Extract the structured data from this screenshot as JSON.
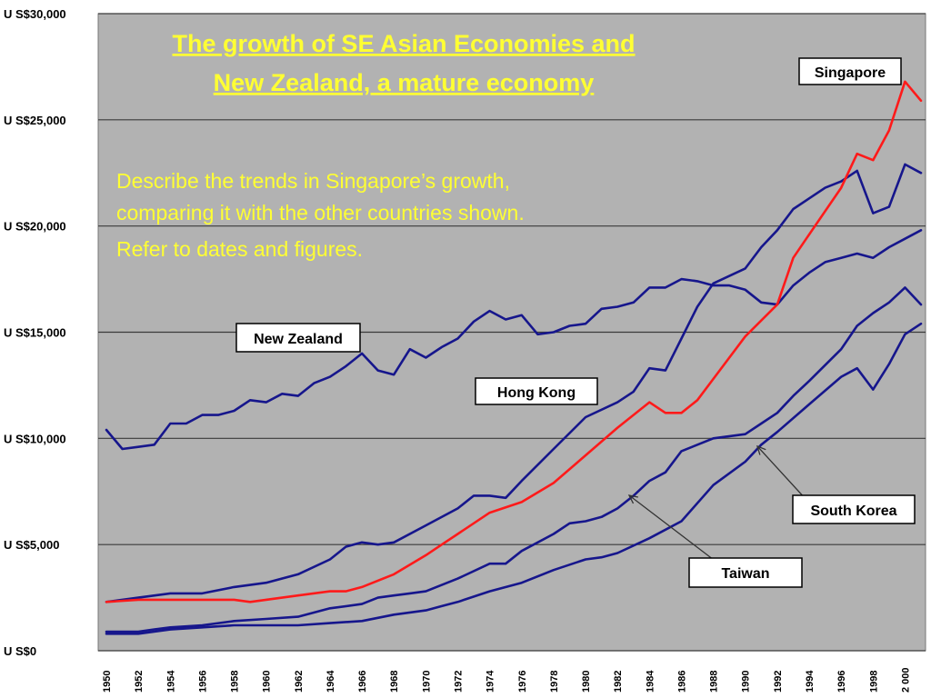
{
  "chart_data": {
    "type": "line",
    "title_lines": [
      "The growth of SE Asian Economies and",
      "New Zealand, a mature economy"
    ],
    "question_lines": [
      "Describe the trends in Singapore’s growth,",
      "comparing it with the other countries shown.",
      "Refer to dates and figures."
    ],
    "y_ticks": [
      {
        "value": 0,
        "label": "U S$0"
      },
      {
        "value": 5000,
        "label": "U S$5,000"
      },
      {
        "value": 10000,
        "label": "U S$10,000"
      },
      {
        "value": 15000,
        "label": "U S$15,000"
      },
      {
        "value": 20000,
        "label": "U S$20,000"
      },
      {
        "value": 25000,
        "label": "U S$25,000"
      },
      {
        "value": 30000,
        "label": "U S$30,000"
      }
    ],
    "ylim": [
      0,
      30000
    ],
    "xlim": [
      1950,
      2001
    ],
    "x_ticks": [
      {
        "value": 1950,
        "label": "1950"
      },
      {
        "value": 1952,
        "label": "1952"
      },
      {
        "value": 1954,
        "label": "1954"
      },
      {
        "value": 1956,
        "label": "1956"
      },
      {
        "value": 1958,
        "label": "1958"
      },
      {
        "value": 1960,
        "label": "1960"
      },
      {
        "value": 1962,
        "label": "1962"
      },
      {
        "value": 1964,
        "label": "1964"
      },
      {
        "value": 1966,
        "label": "1966"
      },
      {
        "value": 1968,
        "label": "1968"
      },
      {
        "value": 1970,
        "label": "1970"
      },
      {
        "value": 1972,
        "label": "1972"
      },
      {
        "value": 1974,
        "label": "1974"
      },
      {
        "value": 1976,
        "label": "1976"
      },
      {
        "value": 1978,
        "label": "1978"
      },
      {
        "value": 1980,
        "label": "1980"
      },
      {
        "value": 1982,
        "label": "1982"
      },
      {
        "value": 1984,
        "label": "1984"
      },
      {
        "value": 1986,
        "label": "1986"
      },
      {
        "value": 1988,
        "label": "1988"
      },
      {
        "value": 1990,
        "label": "1990"
      },
      {
        "value": 1992,
        "label": "1992"
      },
      {
        "value": 1994,
        "label": "1994"
      },
      {
        "value": 1996,
        "label": "1996"
      },
      {
        "value": 1998,
        "label": "1998"
      },
      {
        "value": 2000,
        "label": "2 000"
      }
    ],
    "grid": true,
    "background_color": "#b2b2b2",
    "series": [
      {
        "name": "New Zealand",
        "color": "#16168c",
        "x": [
          1950,
          1951,
          1952,
          1953,
          1954,
          1955,
          1956,
          1957,
          1958,
          1959,
          1960,
          1961,
          1962,
          1963,
          1964,
          1965,
          1966,
          1967,
          1968,
          1969,
          1970,
          1971,
          1972,
          1973,
          1974,
          1975,
          1976,
          1977,
          1978,
          1979,
          1980,
          1981,
          1982,
          1983,
          1984,
          1985,
          1986,
          1987,
          1988,
          1989,
          1990,
          1991,
          1992,
          1993,
          1994,
          1995,
          1996,
          1997,
          1998,
          1999,
          2000,
          2001
        ],
        "y": [
          10400,
          9500,
          9600,
          9700,
          10700,
          10700,
          11100,
          11100,
          11300,
          11800,
          11700,
          12100,
          12000,
          12600,
          12900,
          13400,
          14000,
          13200,
          13000,
          14200,
          13800,
          14300,
          14700,
          15500,
          16000,
          15600,
          15800,
          14900,
          15000,
          15300,
          15400,
          16100,
          16200,
          16400,
          17100,
          17100,
          17500,
          17400,
          17200,
          17200,
          17000,
          16400,
          16300,
          17200,
          17800,
          18300,
          18500,
          18700,
          18500,
          19000,
          19400,
          19800
        ]
      },
      {
        "name": "Hong Kong",
        "color": "#16168c",
        "x": [
          1950,
          1952,
          1954,
          1956,
          1958,
          1960,
          1962,
          1964,
          1965,
          1966,
          1967,
          1968,
          1970,
          1972,
          1973,
          1974,
          1975,
          1976,
          1978,
          1980,
          1982,
          1983,
          1984,
          1985,
          1986,
          1987,
          1988,
          1990,
          1991,
          1992,
          1993,
          1994,
          1995,
          1996,
          1997,
          1998,
          1999,
          2000,
          2001
        ],
        "y": [
          2300,
          2500,
          2700,
          2700,
          3000,
          3200,
          3600,
          4300,
          4900,
          5100,
          5000,
          5100,
          5900,
          6700,
          7300,
          7300,
          7200,
          8000,
          9500,
          11000,
          11700,
          12200,
          13300,
          13200,
          14700,
          16200,
          17300,
          18000,
          19000,
          19800,
          20800,
          21300,
          21800,
          22100,
          22600,
          20600,
          20900,
          22900,
          22500
        ]
      },
      {
        "name": "Taiwan",
        "color": "#16168c",
        "x": [
          1950,
          1952,
          1953,
          1954,
          1956,
          1958,
          1960,
          1962,
          1964,
          1966,
          1967,
          1968,
          1969,
          1970,
          1972,
          1974,
          1975,
          1976,
          1978,
          1979,
          1980,
          1981,
          1982,
          1983,
          1984,
          1985,
          1986,
          1988,
          1990,
          1991,
          1992,
          1993,
          1994,
          1996,
          1997,
          1998,
          1999,
          2000,
          2001
        ],
        "y": [
          900,
          900,
          1000,
          1100,
          1200,
          1400,
          1500,
          1600,
          2000,
          2200,
          2500,
          2600,
          2700,
          2800,
          3400,
          4100,
          4100,
          4700,
          5500,
          6000,
          6100,
          6300,
          6700,
          7300,
          8000,
          8400,
          9400,
          10000,
          10200,
          10700,
          11200,
          12000,
          12700,
          14200,
          15300,
          15900,
          16400,
          17100,
          16300
        ]
      },
      {
        "name": "South Korea",
        "color": "#16168c",
        "x": [
          1950,
          1952,
          1953,
          1954,
          1956,
          1958,
          1960,
          1962,
          1964,
          1966,
          1968,
          1970,
          1971,
          1972,
          1974,
          1976,
          1978,
          1980,
          1981,
          1982,
          1984,
          1986,
          1988,
          1990,
          1991,
          1992,
          1994,
          1996,
          1997,
          1998,
          1999,
          2000,
          2001
        ],
        "y": [
          800,
          800,
          900,
          1000,
          1100,
          1200,
          1200,
          1200,
          1300,
          1400,
          1700,
          1900,
          2100,
          2300,
          2800,
          3200,
          3800,
          4300,
          4400,
          4600,
          5300,
          6100,
          7800,
          8900,
          9700,
          10300,
          11600,
          12900,
          13300,
          12300,
          13500,
          14900,
          15400
        ]
      },
      {
        "name": "Singapore",
        "color": "#ff1a1a",
        "x": [
          1950,
          1952,
          1954,
          1956,
          1958,
          1959,
          1960,
          1962,
          1964,
          1965,
          1966,
          1968,
          1970,
          1971,
          1972,
          1974,
          1976,
          1978,
          1980,
          1982,
          1984,
          1985,
          1986,
          1987,
          1988,
          1990,
          1992,
          1993,
          1994,
          1996,
          1997,
          1998,
          1999,
          2000,
          2001
        ],
        "y": [
          2300,
          2400,
          2400,
          2400,
          2400,
          2300,
          2400,
          2600,
          2800,
          2800,
          3000,
          3600,
          4500,
          5000,
          5500,
          6500,
          7000,
          7900,
          9200,
          10500,
          11700,
          11200,
          11200,
          11800,
          12800,
          14800,
          16300,
          18500,
          19600,
          21800,
          23400,
          23100,
          24500,
          26800,
          25900
        ]
      }
    ],
    "series_labels": [
      {
        "text": "Singapore"
      },
      {
        "text": "New Zealand"
      },
      {
        "text": "Hong Kong"
      },
      {
        "text": "South Korea"
      },
      {
        "text": "Taiwan"
      }
    ]
  }
}
